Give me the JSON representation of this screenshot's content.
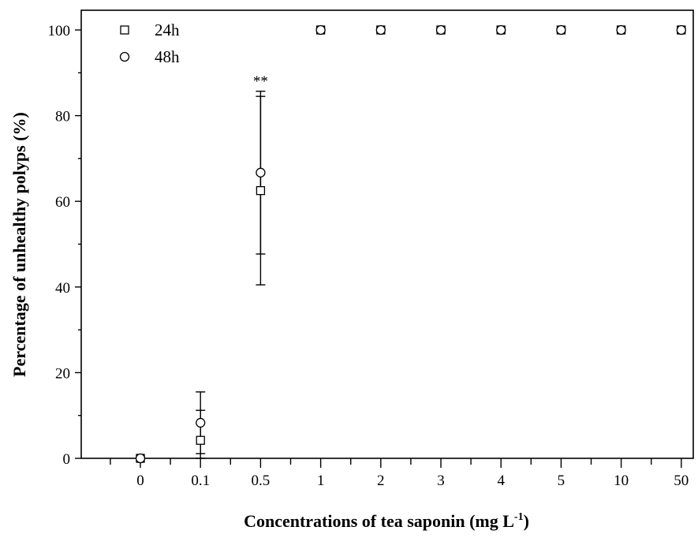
{
  "chart_data": {
    "type": "scatter",
    "categories": [
      "0",
      "0.1",
      "0.5",
      "1",
      "2",
      "3",
      "4",
      "5",
      "10",
      "50"
    ],
    "xlabel": "Concentrations of tea saponin (mg L",
    "xlabel_superscript": "-1",
    "xlabel_suffix": ")",
    "ylabel": "Percentage of unhealthy polyps (%)",
    "ylim": [
      0,
      100
    ],
    "y_ticks": [
      "0",
      "20",
      "40",
      "60",
      "80",
      "100"
    ],
    "legend_position": "top-left",
    "series": [
      {
        "name": "24h",
        "marker": "square",
        "values": [
          0,
          4.2,
          62.5,
          100,
          100,
          100,
          100,
          100,
          100,
          100
        ],
        "errors": [
          0,
          7,
          22,
          0,
          0,
          0,
          0,
          0,
          0,
          0
        ]
      },
      {
        "name": "48h",
        "marker": "circle",
        "values": [
          0,
          8.3,
          66.7,
          100,
          100,
          100,
          100,
          100,
          100,
          100
        ],
        "errors": [
          0,
          7.2,
          19,
          0,
          0,
          0,
          0,
          0,
          0,
          0
        ]
      }
    ],
    "annotations": [
      {
        "category": "0.5",
        "y": 88,
        "text": "**"
      }
    ]
  }
}
